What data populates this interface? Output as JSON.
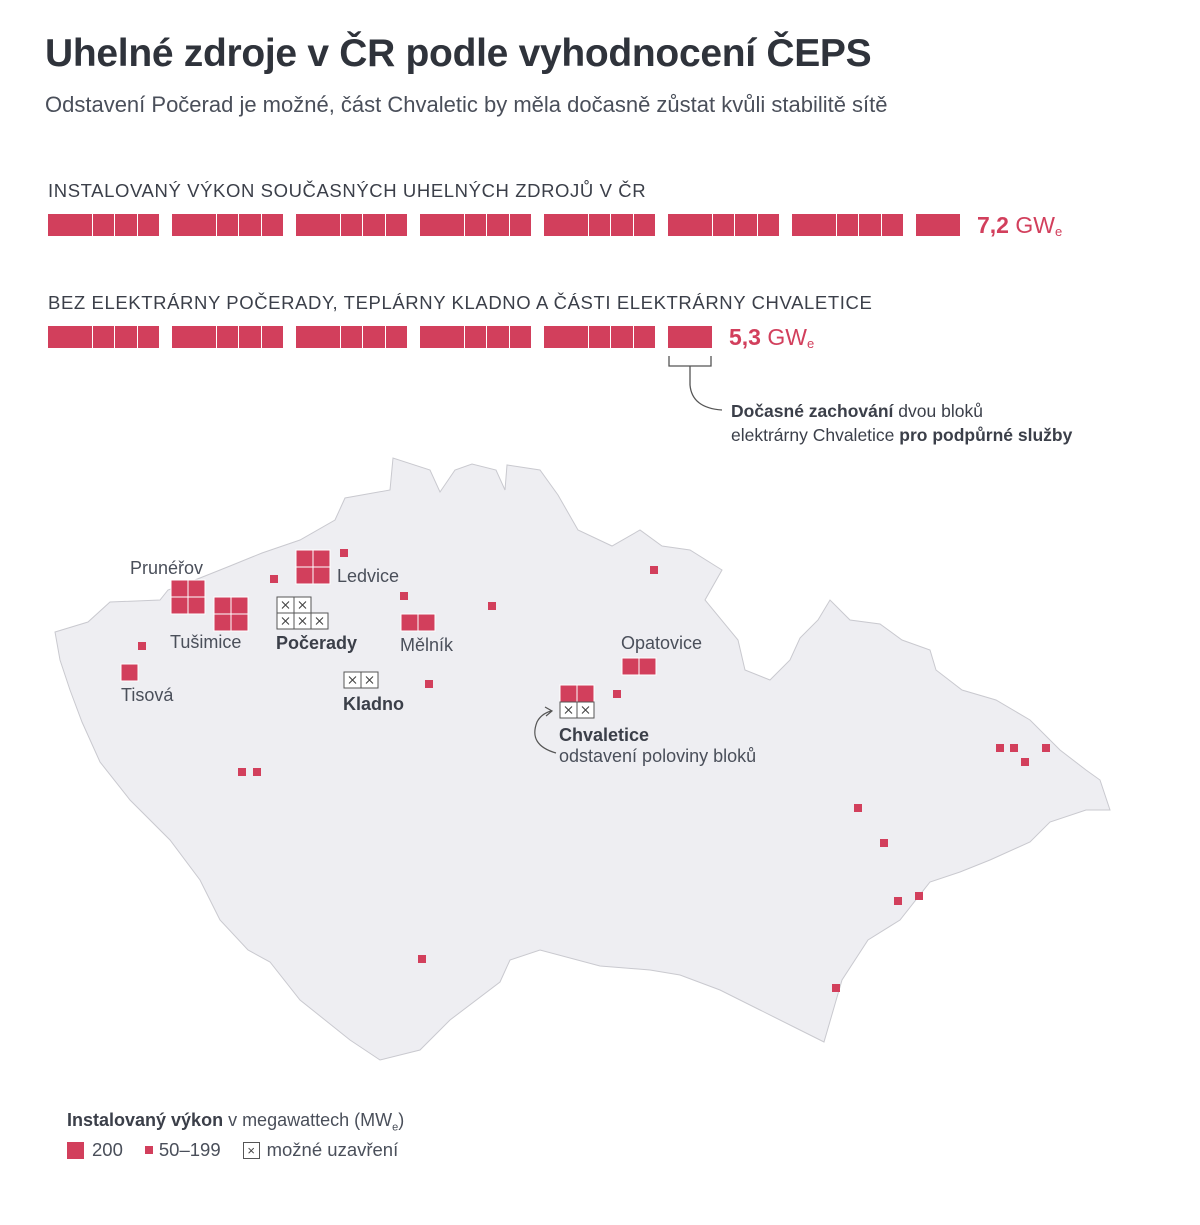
{
  "header": {
    "title": "Uhelné zdroje v ČR podle vyhodnocení ČEPS",
    "subtitle": "Odstavení Počerad je možné, část Chvaletic by měla dočasně zůstat kvůli stabilitě sítě"
  },
  "bars": [
    {
      "label": "INSTALOVANÝ VÝKON SOUČASNÝCH UHELNÝCH ZDROJŮ V ČR",
      "squares": 37,
      "value": "7,2",
      "unit": "GW",
      "unit_sub": "e"
    },
    {
      "label": "BEZ ELEKTRÁRNY POČERADY, TEPLÁRNY KLADNO A ČÁSTI ELEKTRÁRNY CHVALETICE",
      "squares": 27,
      "value": "5,3",
      "unit": "GW",
      "unit_sub": "e"
    }
  ],
  "annotation": {
    "bold1": "Dočasné zachování",
    "text1": " dvou bloků",
    "text2": "elektrárny Chvaletice ",
    "bold2": "pro podpůrné služby"
  },
  "map": {
    "colors": {
      "accent": "#d23f5c",
      "land": "#eeeef2"
    },
    "plants": {
      "prunerov": "Prunéřov",
      "ledvice": "Ledvice",
      "tusimice": "Tušimice",
      "pocerady": "Počerady",
      "melnik": "Mělník",
      "tisova": "Tisová",
      "kladno": "Kladno",
      "opatovice": "Opatovice",
      "chvaletice": "Chvaletice",
      "chvaletice_note": "odstavení poloviny bloků"
    }
  },
  "legend": {
    "title_bold": "Instalovaný výkon",
    "title_rest": " v megawattech (MW",
    "title_sub": "e",
    "title_end": ")",
    "big": "200",
    "small": "50–199",
    "closure": "možné uzavření",
    "closure_icon": "×"
  }
}
